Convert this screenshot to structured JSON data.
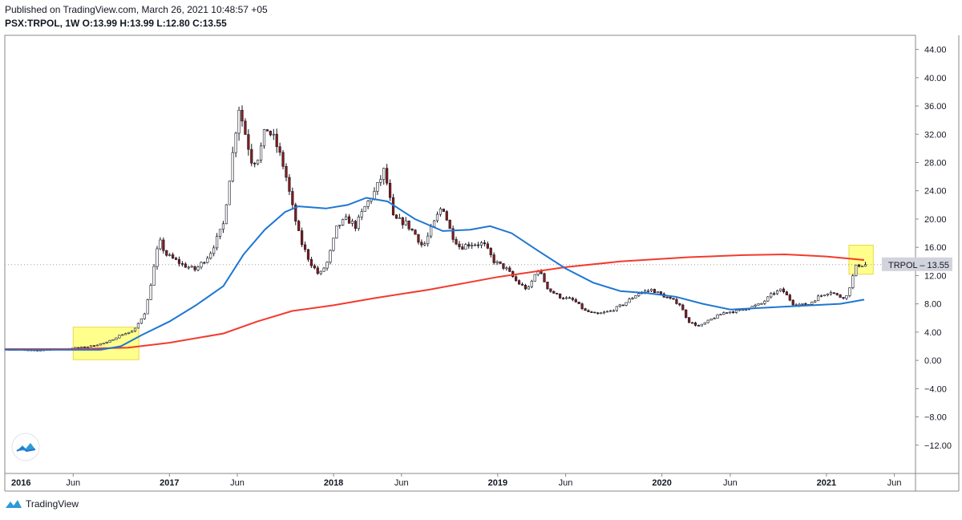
{
  "header": {
    "published": "Published on TradingView.com, March 26, 2021 10:48:57 +05",
    "ohlc": "PSX:TRPOL, 1W  O:13.99 H:13.99 L:12.80 C:13.55"
  },
  "footer": {
    "brand": "TradingView"
  },
  "colors": {
    "up_candle": "#ffffff",
    "down_candle": "#8b1a1a",
    "wick": "#131722",
    "ma_short": "#1e76d3",
    "ma_long": "#f23a2f",
    "highlight": "#ffff66",
    "price_tag_bg": "#d1d4dc"
  },
  "chart_data": {
    "type": "candlestick",
    "symbol": "TRPOL",
    "price_label": "TRPOL – 13.55",
    "last_price": 13.55,
    "ylim": [
      -16,
      46
    ],
    "y_ticks": [
      "44.00",
      "40.00",
      "36.00",
      "32.00",
      "28.00",
      "24.00",
      "20.00",
      "16.00",
      "12.00",
      "8.00",
      "4.00",
      "0.00",
      "−4.00",
      "−8.00",
      "−12.00"
    ],
    "y_tick_values": [
      44,
      40,
      36,
      32,
      28,
      24,
      20,
      16,
      12,
      8,
      4,
      0,
      -4,
      -8,
      -12
    ],
    "x_ticks": [
      {
        "label": "2016",
        "date": "2016-01-01",
        "bold": true
      },
      {
        "label": "Jun",
        "date": "2016-06-01",
        "bold": false
      },
      {
        "label": "2017",
        "date": "2017-01-01",
        "bold": true
      },
      {
        "label": "Jun",
        "date": "2017-06-01",
        "bold": false
      },
      {
        "label": "2018",
        "date": "2018-01-01",
        "bold": true
      },
      {
        "label": "Jun",
        "date": "2018-06-01",
        "bold": false
      },
      {
        "label": "2019",
        "date": "2019-01-01",
        "bold": true
      },
      {
        "label": "Jun",
        "date": "2019-06-01",
        "bold": false
      },
      {
        "label": "2020",
        "date": "2020-01-01",
        "bold": true
      },
      {
        "label": "Jun",
        "date": "2020-06-01",
        "bold": false
      },
      {
        "label": "2021",
        "date": "2021-01-01",
        "bold": true
      },
      {
        "label": "Jun",
        "date": "2021-06-01",
        "bold": false
      }
    ],
    "x_range": [
      "2016-01-01",
      "2021-07-18"
    ],
    "price_path": [
      [
        "2016-01-01",
        1.6
      ],
      [
        "2016-03-01",
        1.4
      ],
      [
        "2016-05-01",
        1.6
      ],
      [
        "2016-07-01",
        1.9
      ],
      [
        "2016-08-15",
        2.5
      ],
      [
        "2016-09-15",
        3.6
      ],
      [
        "2016-10-15",
        4.2
      ],
      [
        "2016-11-10",
        7
      ],
      [
        "2016-11-25",
        12
      ],
      [
        "2016-12-10",
        17
      ],
      [
        "2016-12-25",
        15
      ],
      [
        "2017-02-01",
        13.5
      ],
      [
        "2017-03-01",
        12.8
      ],
      [
        "2017-04-01",
        15
      ],
      [
        "2017-05-01",
        19
      ],
      [
        "2017-05-20",
        28
      ],
      [
        "2017-06-05",
        36
      ],
      [
        "2017-06-20",
        32
      ],
      [
        "2017-07-05",
        28
      ],
      [
        "2017-07-20",
        29
      ],
      [
        "2017-08-05",
        33
      ],
      [
        "2017-08-25",
        31
      ],
      [
        "2017-09-15",
        27
      ],
      [
        "2017-10-01",
        22
      ],
      [
        "2017-10-20",
        17
      ],
      [
        "2017-11-10",
        14
      ],
      [
        "2017-12-01",
        12
      ],
      [
        "2017-12-20",
        14
      ],
      [
        "2018-01-10",
        19
      ],
      [
        "2018-02-01",
        20
      ],
      [
        "2018-02-20",
        19
      ],
      [
        "2018-03-15",
        22
      ],
      [
        "2018-04-05",
        24
      ],
      [
        "2018-04-25",
        27
      ],
      [
        "2018-05-15",
        20
      ],
      [
        "2018-06-10",
        19.5
      ],
      [
        "2018-07-01",
        18
      ],
      [
        "2018-07-20",
        16
      ],
      [
        "2018-08-10",
        19
      ],
      [
        "2018-09-01",
        22
      ],
      [
        "2018-09-20",
        18
      ],
      [
        "2018-10-10",
        16
      ],
      [
        "2018-11-01",
        16.5
      ],
      [
        "2018-12-01",
        16.5
      ],
      [
        "2018-12-25",
        14
      ],
      [
        "2019-01-20",
        13
      ],
      [
        "2019-02-15",
        11
      ],
      [
        "2019-03-10",
        10
      ],
      [
        "2019-04-01",
        13
      ],
      [
        "2019-04-25",
        10
      ],
      [
        "2019-05-20",
        9
      ],
      [
        "2019-06-20",
        8.5
      ],
      [
        "2019-07-15",
        7
      ],
      [
        "2019-08-10",
        6.5
      ],
      [
        "2019-09-10",
        7
      ],
      [
        "2019-10-10",
        8
      ],
      [
        "2019-11-10",
        9.5
      ],
      [
        "2019-12-10",
        10
      ],
      [
        "2020-01-10",
        9
      ],
      [
        "2020-02-10",
        8
      ],
      [
        "2020-03-01",
        5.5
      ],
      [
        "2020-03-25",
        4.8
      ],
      [
        "2020-04-20",
        5.8
      ],
      [
        "2020-05-20",
        6.8
      ],
      [
        "2020-06-20",
        7
      ],
      [
        "2020-07-15",
        7.5
      ],
      [
        "2020-08-10",
        8
      ],
      [
        "2020-09-05",
        9.5
      ],
      [
        "2020-09-25",
        10
      ],
      [
        "2020-10-20",
        8
      ],
      [
        "2020-11-20",
        7.8
      ],
      [
        "2020-12-15",
        9
      ],
      [
        "2021-01-10",
        9.8
      ],
      [
        "2021-01-30",
        9
      ],
      [
        "2021-02-15",
        9
      ],
      [
        "2021-02-25",
        11
      ],
      [
        "2021-03-10",
        13.5
      ],
      [
        "2021-03-26",
        13.55
      ]
    ],
    "series": [
      {
        "role": "ma_short",
        "points": [
          [
            "2016-01-01",
            1.5
          ],
          [
            "2016-08-01",
            1.5
          ],
          [
            "2016-09-15",
            2.0
          ],
          [
            "2016-11-01",
            3.6
          ],
          [
            "2017-01-01",
            5.5
          ],
          [
            "2017-03-01",
            7.8
          ],
          [
            "2017-05-01",
            10.5
          ],
          [
            "2017-06-15",
            15
          ],
          [
            "2017-08-01",
            18.5
          ],
          [
            "2017-09-15",
            21
          ],
          [
            "2017-10-15",
            21.8
          ],
          [
            "2017-12-15",
            21.5
          ],
          [
            "2018-02-01",
            22
          ],
          [
            "2018-03-15",
            23
          ],
          [
            "2018-05-01",
            22.5
          ],
          [
            "2018-07-01",
            20
          ],
          [
            "2018-09-01",
            18.3
          ],
          [
            "2018-11-01",
            18.5
          ],
          [
            "2018-12-15",
            19
          ],
          [
            "2019-02-01",
            18
          ],
          [
            "2019-04-01",
            15.5
          ],
          [
            "2019-06-01",
            13
          ],
          [
            "2019-08-01",
            11
          ],
          [
            "2019-10-01",
            9.8
          ],
          [
            "2019-12-01",
            9.5
          ],
          [
            "2020-02-01",
            9
          ],
          [
            "2020-04-01",
            8
          ],
          [
            "2020-06-01",
            7.2
          ],
          [
            "2020-09-01",
            7.5
          ],
          [
            "2020-12-01",
            7.8
          ],
          [
            "2021-02-01",
            8
          ],
          [
            "2021-03-26",
            8.6
          ]
        ]
      },
      {
        "role": "ma_long",
        "points": [
          [
            "2016-01-01",
            1.6
          ],
          [
            "2016-06-01",
            1.6
          ],
          [
            "2016-10-01",
            1.8
          ],
          [
            "2017-01-01",
            2.5
          ],
          [
            "2017-05-01",
            3.8
          ],
          [
            "2017-07-15",
            5.5
          ],
          [
            "2017-10-01",
            7
          ],
          [
            "2018-01-01",
            7.8
          ],
          [
            "2018-04-01",
            8.8
          ],
          [
            "2018-08-01",
            10
          ],
          [
            "2019-01-01",
            11.8
          ],
          [
            "2019-06-01",
            13.2
          ],
          [
            "2019-10-01",
            14
          ],
          [
            "2020-03-01",
            14.6
          ],
          [
            "2020-07-01",
            14.9
          ],
          [
            "2020-10-01",
            15
          ],
          [
            "2021-01-01",
            14.7
          ],
          [
            "2021-03-26",
            14.2
          ]
        ]
      }
    ],
    "highlights": [
      {
        "from": "2016-06-01",
        "to": "2016-10-25",
        "ymin": 0.1,
        "ymax": 4.7
      },
      {
        "from": "2021-02-20",
        "to": "2021-04-15",
        "ymin": 12.2,
        "ymax": 16.3
      }
    ]
  }
}
